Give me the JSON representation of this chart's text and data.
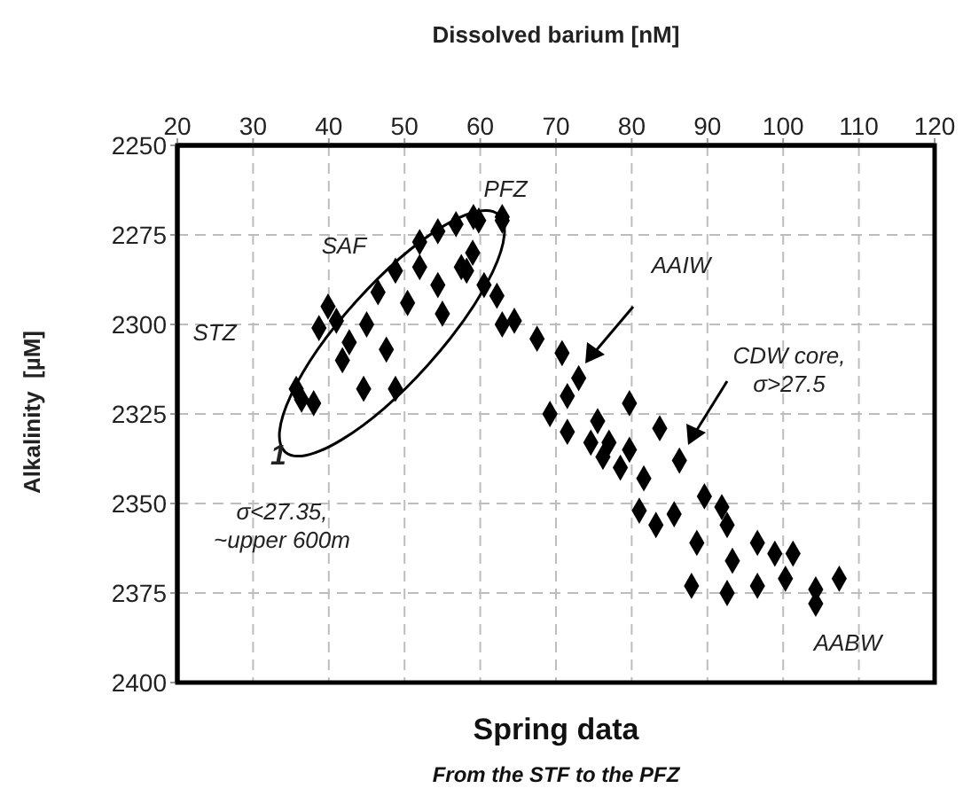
{
  "chart_data": {
    "type": "scatter",
    "title": "Spring data",
    "subtitle": "From the STF to the PFZ",
    "xlabel": "Dissolved barium [nM]",
    "ylabel": "Alkalinity  [µM]",
    "xlim": [
      20,
      120
    ],
    "xticks": [
      20,
      30,
      40,
      50,
      60,
      70,
      80,
      90,
      100,
      110,
      120
    ],
    "ylim": [
      2400,
      2250
    ],
    "yticks": [
      2250,
      2275,
      2300,
      2325,
      2350,
      2375,
      2400
    ],
    "grid": true,
    "marker": "diamond",
    "series": [
      {
        "color": "#000000",
        "x": [
          35.7,
          38,
          36.4,
          39.9,
          38.7,
          41.8,
          44.6,
          48.8,
          47.6,
          45,
          42.7,
          41,
          46.5,
          48.8,
          50.4,
          52,
          54.4,
          56.8,
          59.8,
          62.9,
          54.4,
          57.5,
          60.5,
          55,
          62.9,
          59,
          52,
          59.1,
          62.9,
          58.2,
          62.2,
          64.5,
          67.5,
          70.8,
          73,
          71.5,
          69.2,
          71.5,
          75.5,
          79.7,
          83.7,
          77,
          79.7,
          86.3,
          78.5,
          81.6,
          89.6,
          91.9,
          81,
          83.2,
          85.6,
          88.6,
          92.6,
          96.6,
          98.9,
          101.3,
          93.3,
          87.9,
          92.6,
          96.6,
          100.3,
          104.3,
          107.4,
          104.3,
          76.2,
          74.6
        ],
        "values": [
          2318,
          2322,
          2321,
          2295,
          2301,
          2310,
          2318,
          2318,
          2307,
          2300,
          2305,
          2299,
          2291,
          2285,
          2294,
          2277,
          2274,
          2272,
          2271,
          2270,
          2289,
          2284,
          2289,
          2297,
          2300,
          2280,
          2284,
          2270,
          2271,
          2285,
          2292,
          2299,
          2304,
          2308,
          2315,
          2320,
          2325,
          2330,
          2327,
          2322,
          2329,
          2333,
          2335,
          2338,
          2340,
          2343,
          2348,
          2351,
          2352,
          2356,
          2353,
          2361,
          2356,
          2361,
          2364,
          2364,
          2366,
          2373,
          2375,
          2373,
          2371,
          2374,
          2371,
          2378,
          2337,
          2333
        ]
      }
    ],
    "annotations": [
      "STZ",
      "SAF",
      "PFZ",
      "AAIW",
      "CDW core, σ>27.5",
      "1",
      "σ<27.35, ~upper 600m",
      "AABW"
    ]
  }
}
